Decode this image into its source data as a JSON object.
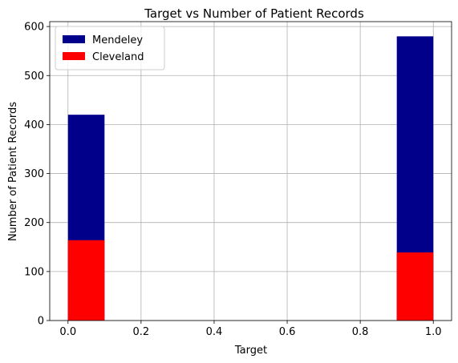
{
  "chart_data": {
    "type": "bar",
    "title": "Target vs Number of Patient Records",
    "xlabel": "Target",
    "ylabel": "Number of Patient Records",
    "xlim": [
      -0.05,
      1.05
    ],
    "ylim": [
      0,
      610
    ],
    "xticks": [
      0.0,
      0.2,
      0.4,
      0.6,
      0.8,
      1.0
    ],
    "xtick_labels": [
      "0.0",
      "0.2",
      "0.4",
      "0.6",
      "0.8",
      "1.0"
    ],
    "yticks": [
      0,
      100,
      200,
      300,
      400,
      500,
      600
    ],
    "ytick_labels": [
      "0",
      "100",
      "200",
      "300",
      "400",
      "500",
      "600"
    ],
    "grid": true,
    "legend_position": "top-left",
    "series": [
      {
        "name": "Mendeley",
        "color": "#00008b",
        "bins": [
          {
            "x0": 0.0,
            "x1": 0.1,
            "value": 420
          },
          {
            "x0": 0.9,
            "x1": 1.0,
            "value": 580
          }
        ]
      },
      {
        "name": "Cleveland",
        "color": "#ff0000",
        "bins": [
          {
            "x0": 0.0,
            "x1": 0.1,
            "value": 164
          },
          {
            "x0": 0.9,
            "x1": 1.0,
            "value": 139
          }
        ]
      }
    ]
  }
}
